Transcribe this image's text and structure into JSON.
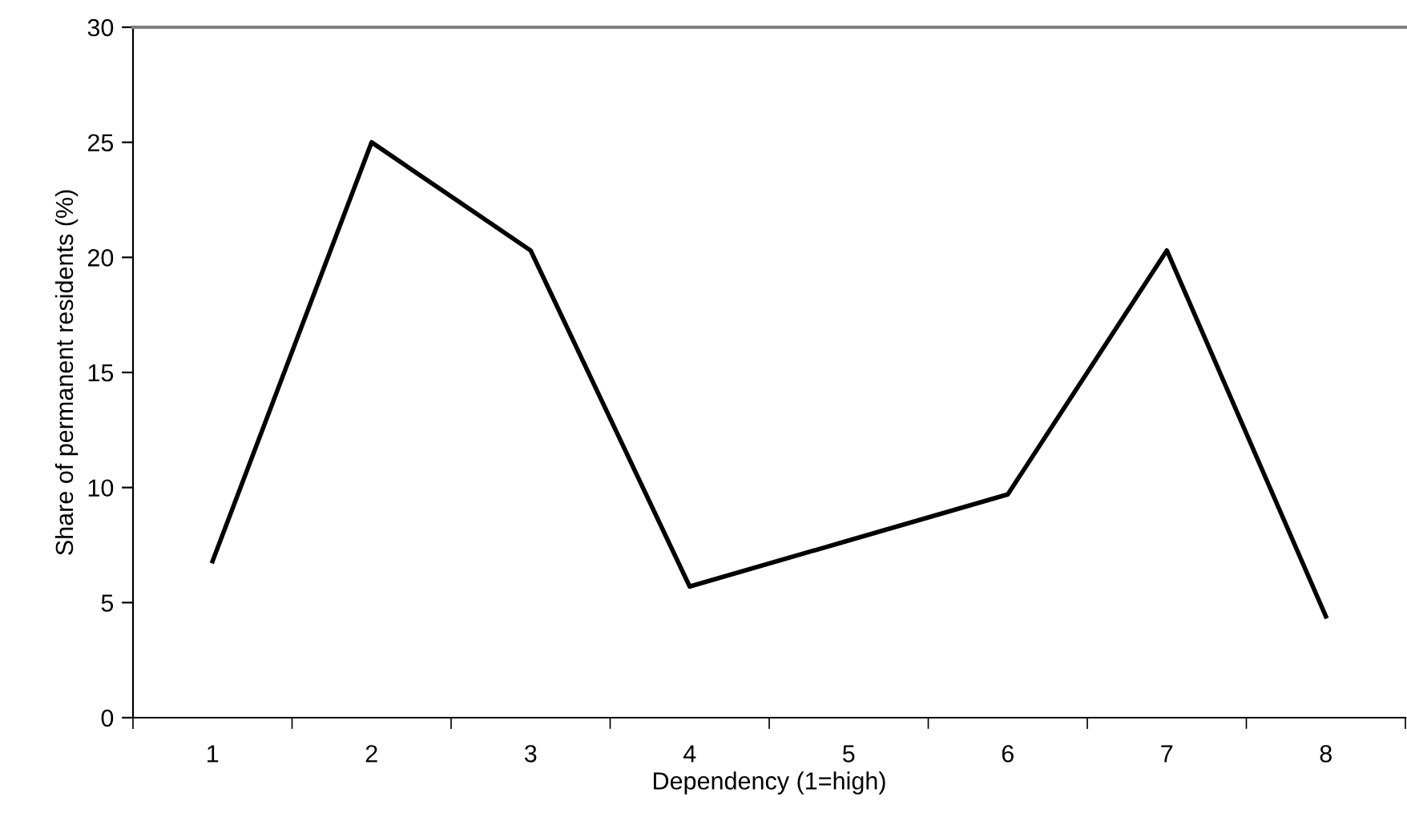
{
  "chart_data": {
    "type": "line",
    "xlabel": "Dependency (1=high)",
    "ylabel": "Share of permanent residents (%)",
    "categories": [
      "1",
      "2",
      "3",
      "4",
      "5",
      "6",
      "7",
      "8"
    ],
    "series": [
      {
        "color": "#000000",
        "values": [
          6.8,
          25.0,
          20.3,
          5.7,
          7.7,
          9.7,
          20.3,
          4.4
        ]
      }
    ],
    "ylim": [
      0,
      30
    ],
    "yticks": [
      0,
      5,
      10,
      15,
      20,
      25,
      30
    ],
    "grid": false,
    "legend": false,
    "marker": "none",
    "line_style": "solid"
  }
}
